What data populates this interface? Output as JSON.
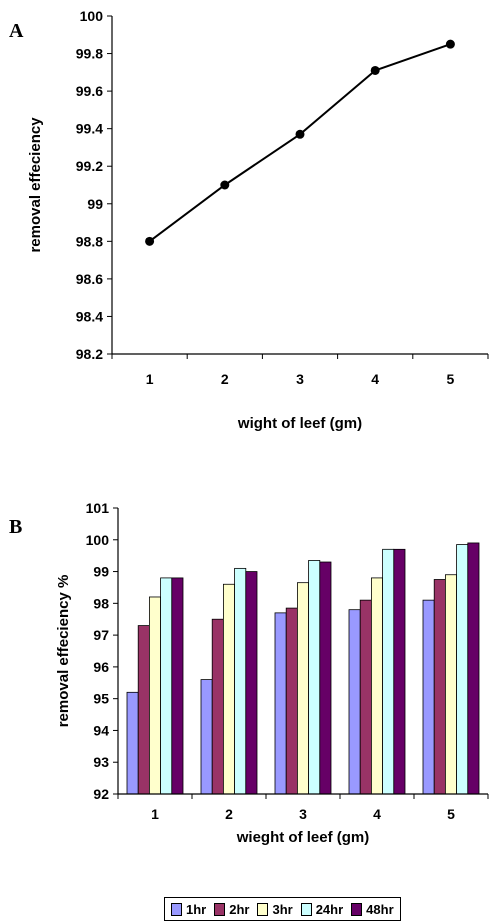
{
  "panels": {
    "a": "A",
    "b": "B"
  },
  "chart_data": [
    {
      "type": "line",
      "title": "",
      "xlabel": "wight of leef (gm)",
      "ylabel": "removal effeciency",
      "x": [
        1,
        2,
        3,
        4,
        5
      ],
      "y": [
        98.8,
        99.1,
        99.37,
        99.71,
        99.85
      ],
      "xticks": [
        "1",
        "2",
        "3",
        "4",
        "5"
      ],
      "yticks": [
        "98.2",
        "98.4",
        "98.6",
        "98.8",
        "99",
        "99.2",
        "99.4",
        "99.6",
        "99.8",
        "100"
      ],
      "ylim": [
        98.2,
        100
      ],
      "grid": false,
      "color": "#000000"
    },
    {
      "type": "bar",
      "title": "",
      "xlabel": "wieght of leef (gm)",
      "ylabel": "removal effeciency %",
      "categories": [
        "1",
        "2",
        "3",
        "4",
        "5"
      ],
      "yticks": [
        "92",
        "93",
        "94",
        "95",
        "96",
        "97",
        "98",
        "99",
        "100",
        "101"
      ],
      "ylim": [
        92,
        101
      ],
      "grid": false,
      "legend_position": "bottom",
      "series": [
        {
          "name": "1hr",
          "color": "#9999ff",
          "values": [
            95.2,
            95.6,
            97.7,
            97.8,
            98.1
          ]
        },
        {
          "name": "2hr",
          "color": "#993366",
          "values": [
            97.3,
            97.5,
            97.85,
            98.1,
            98.75
          ]
        },
        {
          "name": "3hr",
          "color": "#ffffcc",
          "values": [
            98.2,
            98.6,
            98.65,
            98.8,
            98.9
          ]
        },
        {
          "name": "24hr",
          "color": "#ccffff",
          "values": [
            98.8,
            99.1,
            99.35,
            99.7,
            99.85
          ]
        },
        {
          "name": "48hr",
          "color": "#660066",
          "values": [
            98.8,
            99.0,
            99.3,
            99.7,
            99.9
          ]
        }
      ]
    }
  ]
}
